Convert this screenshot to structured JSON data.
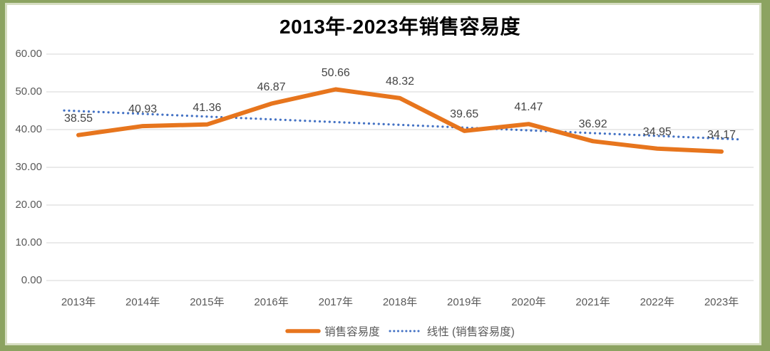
{
  "window": {
    "frame_border_color": "#8CA361",
    "canvas_color": "#FFFFFF"
  },
  "chart_data": {
    "type": "line",
    "title": "2013年-2023年销售容易度",
    "categories": [
      "2013年",
      "2014年",
      "2015年",
      "2016年",
      "2017年",
      "2018年",
      "2019年",
      "2020年",
      "2021年",
      "2022年",
      "2023年"
    ],
    "series": [
      {
        "name": "销售容易度",
        "style": "solid",
        "color": "#E7751D",
        "values": [
          38.55,
          40.93,
          41.36,
          46.87,
          50.66,
          48.32,
          39.65,
          41.47,
          36.92,
          34.95,
          34.17
        ],
        "data_labels": [
          "38.55",
          "40.93",
          "41.36",
          "46.87",
          "50.66",
          "48.32",
          "39.65",
          "41.47",
          "36.92",
          "34.95",
          "34,17"
        ]
      },
      {
        "name": "线性 (销售容易度)",
        "style": "dotted",
        "color": "#4472C4",
        "trend_start": 44.9,
        "trend_end": 37.6
      }
    ],
    "xlabel": "",
    "ylabel": "",
    "ylim": [
      0,
      60
    ],
    "ytick_labels": [
      "60.00",
      "50.00",
      "40.00",
      "30.00",
      "20.00",
      "10.00",
      "0.00"
    ],
    "grid": true,
    "legend_position": "bottom",
    "colors": {
      "gridline": "#E4E4E4",
      "axis_text": "#595959",
      "data_label_text": "#444444",
      "title_text": "#000000",
      "legend_text": "#595959"
    }
  }
}
